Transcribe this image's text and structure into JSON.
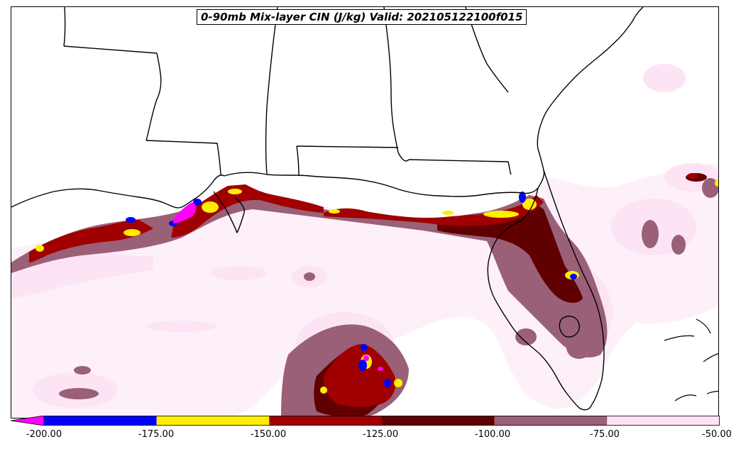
{
  "title": "0-90mb Mix-layer CIN (J/kg) Valid: 202105122100f015",
  "colorbar": {
    "ticks": [
      "-200.00",
      "-175.00",
      "-150.00",
      "-125.00",
      "-100.00",
      "-75.00",
      "-50.00"
    ],
    "bins": [
      {
        "from": -225,
        "to": -200,
        "color": "#ff00ff"
      },
      {
        "from": -200,
        "to": -175,
        "color": "#0000ff"
      },
      {
        "from": -175,
        "to": -150,
        "color": "#ffee00"
      },
      {
        "from": -150,
        "to": -125,
        "color": "#a00000"
      },
      {
        "from": -125,
        "to": -100,
        "color": "#600000"
      },
      {
        "from": -100,
        "to": -75,
        "color": "#9a6078"
      },
      {
        "from": -75,
        "to": -50,
        "color": "#fce4f4"
      }
    ]
  }
}
